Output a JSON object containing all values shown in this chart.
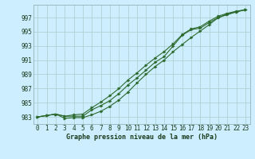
{
  "title": "Graphe pression niveau de la mer (hPa)",
  "background_color": "#cceeff",
  "grid_color": "#aacccc",
  "line_color": "#2d6a2d",
  "x_ticks": [
    0,
    1,
    2,
    3,
    4,
    5,
    6,
    7,
    8,
    9,
    10,
    11,
    12,
    13,
    14,
    15,
    16,
    17,
    18,
    19,
    20,
    21,
    22,
    23
  ],
  "ylim": [
    982.0,
    998.8
  ],
  "yticks": [
    983,
    985,
    987,
    989,
    991,
    993,
    995,
    997
  ],
  "line1": [
    983.0,
    983.2,
    983.4,
    983.1,
    983.1,
    983.1,
    984.0,
    984.6,
    985.3,
    986.3,
    987.5,
    988.5,
    989.6,
    990.7,
    991.5,
    993.0,
    994.5,
    995.3,
    995.5,
    996.3,
    997.0,
    997.5,
    997.8,
    998.1
  ],
  "line2": [
    983.0,
    983.2,
    983.4,
    982.8,
    982.9,
    982.9,
    983.3,
    983.8,
    984.5,
    985.4,
    986.5,
    987.8,
    989.0,
    990.1,
    991.0,
    992.2,
    993.2,
    994.2,
    995.1,
    996.0,
    997.0,
    997.4,
    997.8,
    998.1
  ],
  "line3": [
    983.0,
    983.2,
    983.4,
    983.1,
    983.3,
    983.4,
    984.3,
    985.1,
    986.0,
    987.0,
    988.2,
    989.2,
    990.3,
    991.3,
    992.2,
    993.3,
    994.6,
    995.4,
    995.7,
    996.5,
    997.2,
    997.6,
    997.9,
    998.1
  ],
  "title_fontsize": 6.0,
  "tick_fontsize": 5.5
}
